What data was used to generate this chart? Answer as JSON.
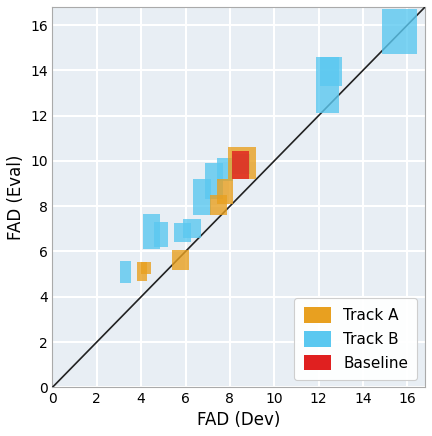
{
  "title": "",
  "xlabel": "FAD (Dev)",
  "ylabel": "FAD (Eval)",
  "xlim": [
    0,
    16.8
  ],
  "ylim": [
    0,
    16.8
  ],
  "xticks": [
    0,
    2,
    4,
    6,
    8,
    10,
    12,
    14,
    16
  ],
  "yticks": [
    0,
    2,
    4,
    6,
    8,
    10,
    12,
    14,
    16
  ],
  "color_track_a": "#E8A020",
  "color_track_b": "#5BC8F0",
  "color_baseline": "#E02020",
  "track_a_points": [
    [
      3.8,
      4.7,
      0.45,
      0.85
    ],
    [
      4.0,
      5.0,
      0.45,
      0.55
    ],
    [
      5.4,
      5.2,
      0.75,
      0.85
    ],
    [
      7.1,
      7.6,
      0.75,
      0.9
    ],
    [
      7.4,
      8.1,
      0.75,
      1.1
    ],
    [
      7.9,
      9.2,
      1.3,
      1.4
    ]
  ],
  "track_b_points": [
    [
      3.05,
      4.6,
      0.5,
      1.0
    ],
    [
      4.1,
      6.1,
      0.75,
      1.55
    ],
    [
      4.6,
      6.2,
      0.6,
      1.1
    ],
    [
      5.5,
      6.4,
      0.75,
      0.85
    ],
    [
      5.9,
      6.6,
      0.8,
      0.85
    ],
    [
      6.35,
      7.6,
      0.8,
      1.6
    ],
    [
      6.9,
      8.3,
      0.8,
      1.6
    ],
    [
      7.4,
      9.1,
      0.75,
      1.05
    ],
    [
      8.1,
      9.4,
      0.8,
      0.9
    ],
    [
      11.9,
      12.1,
      1.0,
      2.5
    ],
    [
      12.05,
      13.3,
      1.0,
      1.3
    ],
    [
      14.85,
      14.7,
      1.6,
      2.0
    ]
  ],
  "baseline_points": [
    [
      8.1,
      9.2,
      0.75,
      1.25
    ]
  ],
  "diagonal_color": "#222222",
  "plot_bg_color": "#E8EEF4",
  "grid_color": "#ffffff",
  "legend_fontsize": 11,
  "axis_label_fontsize": 12
}
